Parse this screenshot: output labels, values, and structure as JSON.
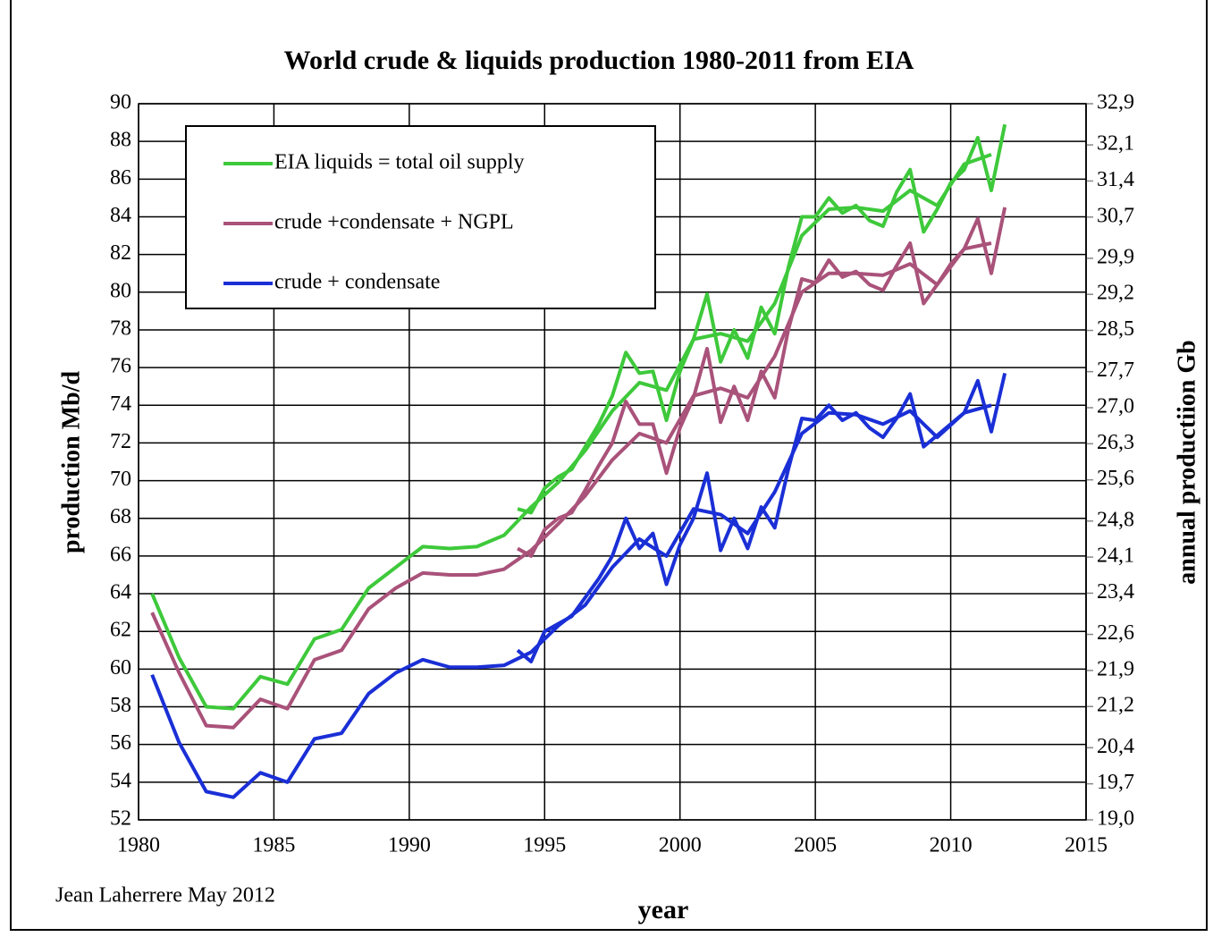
{
  "chart_data": {
    "type": "line",
    "title": "World crude & liquids production 1980-2011 from EIA",
    "ylabel": "production Mb/d",
    "y2label": "annual productiion Gb",
    "xlabel": "year",
    "annotation": "Jean Laherrere May 2012",
    "xlim": [
      1980,
      2015
    ],
    "xticks": [
      1980,
      1985,
      1990,
      1995,
      2000,
      2005,
      2010,
      2015
    ],
    "ylim": [
      52,
      90
    ],
    "yticks": [
      52,
      54,
      56,
      58,
      60,
      62,
      64,
      66,
      68,
      70,
      72,
      74,
      76,
      78,
      80,
      82,
      84,
      86,
      88,
      90
    ],
    "y2lim": [
      19.0,
      32.9
    ],
    "y2ticks": [
      {
        "value": 19.0,
        "label": "19,0"
      },
      {
        "value": 19.7,
        "label": "19,7"
      },
      {
        "value": 20.4,
        "label": "20,4"
      },
      {
        "value": 21.2,
        "label": "21,2"
      },
      {
        "value": 21.9,
        "label": "21,9"
      },
      {
        "value": 22.6,
        "label": "22,6"
      },
      {
        "value": 23.4,
        "label": "23,4"
      },
      {
        "value": 24.1,
        "label": "24,1"
      },
      {
        "value": 24.8,
        "label": "24,8"
      },
      {
        "value": 25.6,
        "label": "25,6"
      },
      {
        "value": 26.3,
        "label": "26,3"
      },
      {
        "value": 27.0,
        "label": "27,0"
      },
      {
        "value": 27.7,
        "label": "27,7"
      },
      {
        "value": 28.5,
        "label": "28,5"
      },
      {
        "value": 29.2,
        "label": "29,2"
      },
      {
        "value": 29.9,
        "label": "29,9"
      },
      {
        "value": 30.7,
        "label": "30,7"
      },
      {
        "value": 31.4,
        "label": "31,4"
      },
      {
        "value": 32.1,
        "label": "32,1"
      },
      {
        "value": 32.9,
        "label": "32,9"
      }
    ],
    "grid": true,
    "legend": "upper left",
    "series": [
      {
        "name": "EIA liquids = total oil supply",
        "color": "#3ec93b",
        "x": [
          1980.5,
          1981.5,
          1982.5,
          1983.5,
          1984.5,
          1985.5,
          1986.5,
          1987.5,
          1988.5,
          1989.5,
          1990.5,
          1991.5,
          1992.5,
          1993.5,
          1994.5,
          1995.5,
          1996.5,
          1997.5,
          1998.5,
          1999.5,
          2000.5,
          2001.5,
          2002.5,
          2003.5,
          2004.5,
          2005.5,
          2006.5,
          2007.5,
          2008.5,
          2009.5,
          2010.5,
          2011.5
        ],
        "values": [
          64.0,
          60.6,
          58.0,
          57.9,
          59.6,
          59.2,
          61.6,
          62.1,
          64.3,
          65.4,
          66.5,
          66.4,
          66.5,
          67.1,
          68.6,
          69.9,
          71.6,
          73.7,
          75.2,
          74.8,
          77.5,
          77.8,
          77.4,
          79.4,
          83.0,
          84.4,
          84.5,
          84.3,
          85.4,
          84.6,
          86.8,
          87.3
        ]
      },
      {
        "name": "crude +condensate + NGPL",
        "color": "#a9527a",
        "x": [
          1980.5,
          1981.5,
          1982.5,
          1983.5,
          1984.5,
          1985.5,
          1986.5,
          1987.5,
          1988.5,
          1989.5,
          1990.5,
          1991.5,
          1992.5,
          1993.5,
          1994.5,
          1995.5,
          1996.5,
          1997.5,
          1998.5,
          1999.5,
          2000.5,
          2001.5,
          2002.5,
          2003.5,
          2004.5,
          2005.5,
          2006.5,
          2007.5,
          2008.5,
          2009.5,
          2010.5,
          2011.5
        ],
        "values": [
          63.0,
          59.8,
          57.0,
          56.9,
          58.4,
          57.9,
          60.5,
          61.0,
          63.2,
          64.3,
          65.1,
          65.0,
          65.0,
          65.3,
          66.3,
          67.7,
          69.2,
          71.1,
          72.5,
          72.0,
          74.5,
          74.9,
          74.4,
          76.6,
          80.0,
          81.0,
          81.0,
          80.9,
          81.5,
          80.4,
          82.3,
          82.6
        ]
      },
      {
        "name": "crude + condensate",
        "color": "#1a2fd6",
        "x": [
          1980.5,
          1981.5,
          1982.5,
          1983.5,
          1984.5,
          1985.5,
          1986.5,
          1987.5,
          1988.5,
          1989.5,
          1990.5,
          1991.5,
          1992.5,
          1993.5,
          1994.5,
          1995.5,
          1996.5,
          1997.5,
          1998.5,
          1999.5,
          2000.5,
          2001.5,
          2002.5,
          2003.5,
          2004.5,
          2005.5,
          2006.5,
          2007.5,
          2008.5,
          2009.5,
          2010.5,
          2011.5
        ],
        "values": [
          59.7,
          56.1,
          53.5,
          53.2,
          54.5,
          54.0,
          56.3,
          56.6,
          58.7,
          59.8,
          60.5,
          60.1,
          60.1,
          60.2,
          60.9,
          62.3,
          63.4,
          65.4,
          66.9,
          66.0,
          68.5,
          68.2,
          67.2,
          69.4,
          72.5,
          73.6,
          73.5,
          73.0,
          73.7,
          72.3,
          73.6,
          74.0
        ]
      },
      {
        "name": "EIA liquids = total oil supply",
        "color": "#3ec93b",
        "x": [
          1994,
          1994.5,
          1995,
          1995.5,
          1996,
          1996.5,
          1997,
          1997.5,
          1998,
          1998.5,
          1999,
          1999.5,
          2000,
          2000.5,
          2001,
          2001.5,
          2002,
          2002.5,
          2003,
          2003.5,
          2004,
          2004.5,
          2005,
          2005.5,
          2006,
          2006.5,
          2007,
          2007.5,
          2008,
          2008.5,
          2009,
          2009.5,
          2010,
          2010.5,
          2011,
          2011.5,
          2012
        ],
        "values": [
          68.5,
          68.3,
          69.6,
          70.2,
          70.6,
          71.8,
          73.0,
          74.5,
          76.8,
          75.7,
          75.8,
          73.2,
          75.8,
          77.5,
          79.9,
          76.3,
          78.0,
          76.5,
          79.2,
          77.8,
          81.3,
          84.0,
          84.0,
          85.0,
          84.2,
          84.6,
          83.8,
          83.5,
          85.3,
          86.5,
          83.2,
          84.4,
          85.8,
          86.5,
          88.2,
          85.4,
          88.9
        ]
      },
      {
        "name": "crude +condensate + NGPL",
        "color": "#a9527a",
        "x": [
          1994,
          1994.5,
          1995,
          1995.5,
          1996,
          1996.5,
          1997,
          1997.5,
          1998,
          1998.5,
          1999,
          1999.5,
          2000,
          2000.5,
          2001,
          2001.5,
          2002,
          2002.5,
          2003,
          2003.5,
          2004,
          2004.5,
          2005,
          2005.5,
          2006,
          2006.5,
          2007,
          2007.5,
          2008,
          2008.5,
          2009,
          2009.5,
          2010,
          2010.5,
          2011,
          2011.5,
          2012
        ],
        "values": [
          66.4,
          66.0,
          67.4,
          68.0,
          68.3,
          69.5,
          70.8,
          72.0,
          74.2,
          73.0,
          73.0,
          70.4,
          72.8,
          74.4,
          77.0,
          73.1,
          75.0,
          73.2,
          75.8,
          74.4,
          78.0,
          80.7,
          80.5,
          81.7,
          80.8,
          81.1,
          80.4,
          80.1,
          81.4,
          82.6,
          79.4,
          80.4,
          81.5,
          82.3,
          83.9,
          81.0,
          84.5
        ]
      },
      {
        "name": "crude + condensate",
        "color": "#1a2fd6",
        "x": [
          1994,
          1994.5,
          1995,
          1995.5,
          1996,
          1996.5,
          1997,
          1997.5,
          1998,
          1998.5,
          1999,
          1999.5,
          2000,
          2000.5,
          2001,
          2001.5,
          2002,
          2002.5,
          2003,
          2003.5,
          2004,
          2004.5,
          2005,
          2005.5,
          2006,
          2006.5,
          2007,
          2007.5,
          2008,
          2008.5,
          2009,
          2009.5,
          2010,
          2010.5,
          2011,
          2011.5,
          2012
        ],
        "values": [
          61.0,
          60.4,
          62.0,
          62.4,
          62.8,
          63.8,
          64.8,
          66.0,
          68.0,
          66.4,
          67.2,
          64.5,
          66.6,
          68.0,
          70.4,
          66.3,
          68.0,
          66.4,
          68.6,
          67.5,
          70.6,
          73.3,
          73.2,
          74.0,
          73.2,
          73.6,
          72.8,
          72.3,
          73.3,
          74.6,
          71.8,
          72.4,
          73.0,
          73.6,
          75.3,
          72.6,
          75.7
        ]
      }
    ]
  }
}
